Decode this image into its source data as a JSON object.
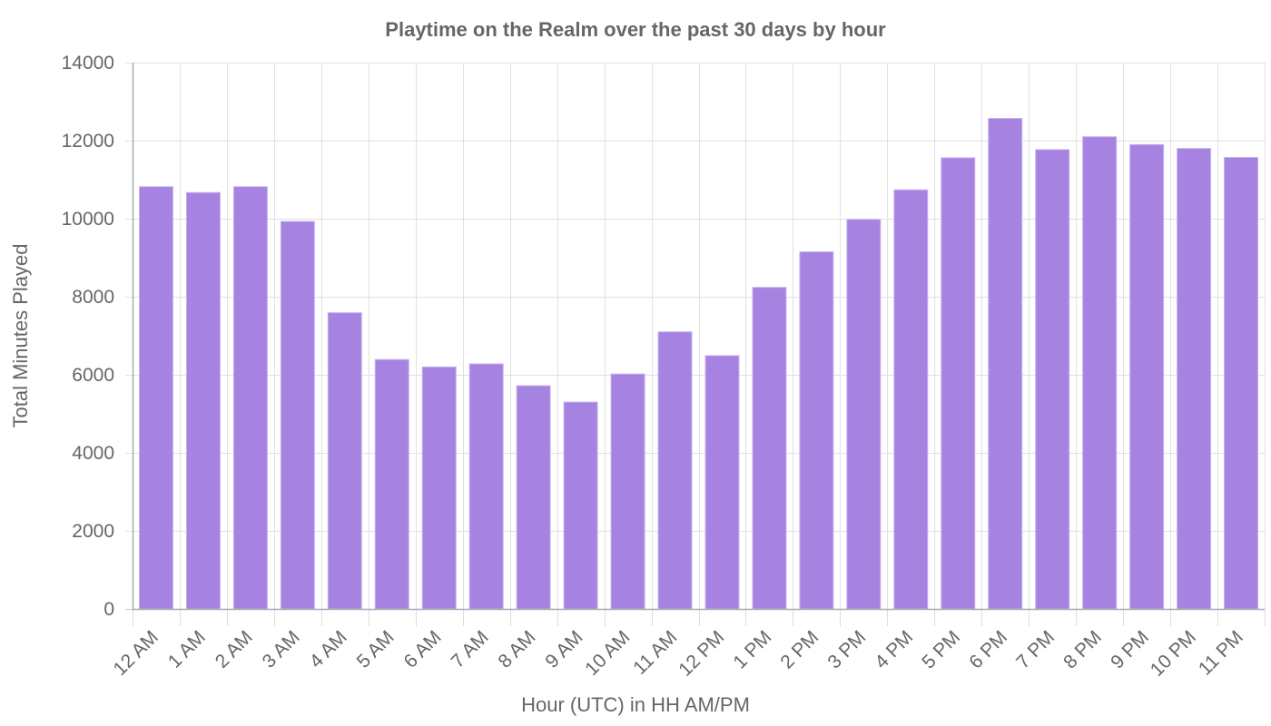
{
  "chart_data": {
    "type": "bar",
    "title": "Playtime on the Realm over the past 30 days by hour",
    "xlabel": "Hour (UTC) in HH AM/PM",
    "ylabel": "Total Minutes Played",
    "ylim": [
      0,
      14000
    ],
    "yticks": [
      0,
      2000,
      4000,
      6000,
      8000,
      10000,
      12000,
      14000
    ],
    "grid": true,
    "legend": null,
    "bar_color": "#a683e1",
    "categories": [
      "12 AM",
      "1 AM",
      "2 AM",
      "3 AM",
      "4 AM",
      "5 AM",
      "6 AM",
      "7 AM",
      "8 AM",
      "9 AM",
      "10 AM",
      "11 AM",
      "12 PM",
      "1 PM",
      "2 PM",
      "3 PM",
      "4 PM",
      "5 PM",
      "6 PM",
      "7 PM",
      "8 PM",
      "9 PM",
      "10 PM",
      "11 PM"
    ],
    "series": [
      {
        "name": "Total Minutes Played",
        "values": [
          10820,
          10670,
          10820,
          9930,
          7590,
          6390,
          6200,
          6280,
          5720,
          5300,
          6020,
          7100,
          6490,
          8240,
          9150,
          9980,
          10740,
          11560,
          12570,
          11770,
          12100,
          11900,
          11800,
          11570
        ]
      }
    ]
  }
}
